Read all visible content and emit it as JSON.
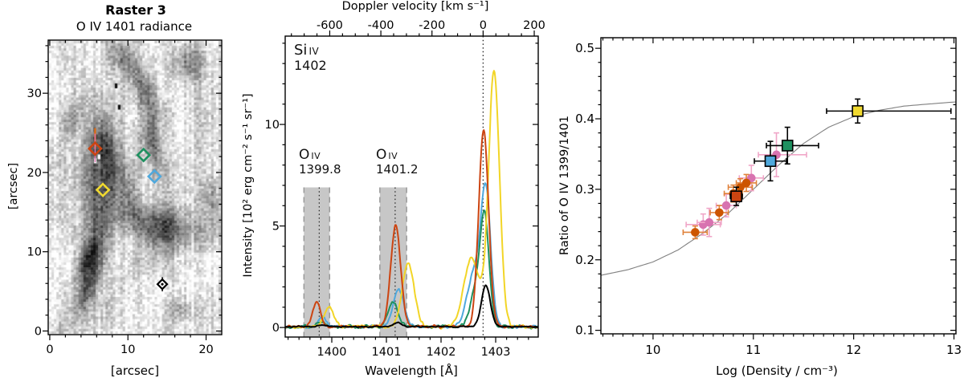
{
  "chart_data": [
    {
      "id": "raster-map",
      "type": "heatmap",
      "title": "Raster 3",
      "subtitle": "O IV 1401 radiance",
      "xlabel": "[arcsec]",
      "ylabel": "[arcsec]",
      "xlim": [
        -0.2,
        22.0
      ],
      "ylim": [
        -0.46,
        36.7
      ],
      "xticks": [
        0,
        10,
        20
      ],
      "yticks": [
        0,
        10,
        20,
        30
      ],
      "minor_tick_step": 2,
      "colormap": "inverted-grayscale",
      "markers": [
        {
          "label": "region-red",
          "shape": "diamond",
          "color": "#cc4411",
          "x": 5.8,
          "y": 23.0,
          "extra_lines": [
            {
              "color": "#e06a10",
              "y0": 23.0,
              "y1": 25.6,
              "width": 2.2
            },
            {
              "color": "#e070b0",
              "y0": 21.3,
              "y1": 24.9,
              "width": 1.3
            }
          ]
        },
        {
          "label": "region-green",
          "shape": "diamond",
          "color": "#1e9160",
          "x": 12.0,
          "y": 22.2
        },
        {
          "label": "region-blue",
          "shape": "diamond",
          "color": "#4fa8dc",
          "x": 13.4,
          "y": 19.5
        },
        {
          "label": "region-yellow",
          "shape": "diamond",
          "color": "#f0d930",
          "x": 6.8,
          "y": 17.8
        },
        {
          "label": "region-black",
          "shape": "diamond",
          "color": "#000000",
          "x": 14.4,
          "y": 5.9,
          "yerr": 0.9
        }
      ],
      "dark_features": [
        [
          5.2,
          6.5,
          0.9,
          3.2,
          -20,
          0.62
        ],
        [
          5.8,
          14,
          1.1,
          4,
          -8,
          0.34
        ],
        [
          7.3,
          22,
          1.2,
          4.5,
          8,
          0.6
        ],
        [
          4.6,
          20,
          1.4,
          3.5,
          0,
          0.34
        ],
        [
          14.5,
          13,
          3.2,
          1.8,
          -12,
          0.58
        ],
        [
          11.5,
          31.5,
          1.0,
          3.5,
          25,
          0.42
        ],
        [
          13.3,
          23.5,
          0.8,
          3.0,
          10,
          0.4
        ],
        [
          9.0,
          34.5,
          1.2,
          1.5,
          0,
          0.3
        ],
        [
          18.0,
          34.0,
          1.5,
          1.5,
          0,
          0.34
        ],
        [
          21.0,
          16.0,
          1.0,
          2.5,
          0,
          0.3
        ],
        [
          16.5,
          2.5,
          1.5,
          1.0,
          0,
          0.26
        ],
        [
          2.5,
          26.0,
          0.8,
          2.0,
          -15,
          0.3
        ],
        [
          10.2,
          17.5,
          0.7,
          2.2,
          5,
          0.3
        ],
        [
          4.9,
          9.5,
          0.7,
          2.4,
          -25,
          0.45
        ]
      ]
    },
    {
      "id": "spectra",
      "type": "line",
      "top_xlabel": "Doppler velocity [km s⁻¹]",
      "top_xticks": [
        -600,
        -400,
        -200,
        0,
        200
      ],
      "xlabel": "Wavelength [Å]",
      "ylabel": "Intensity [10² erg cm⁻² s⁻¹ sr⁻¹]",
      "xlim": [
        1399.147,
        1403.779
      ],
      "ylim": [
        -0.47,
        14.35
      ],
      "xticks": [
        1400,
        1401,
        1402,
        1403
      ],
      "yticks": [
        0,
        5,
        10
      ],
      "rest_wavelength_si_iv": 1402.77,
      "shaded_bands": [
        {
          "x0": 1399.49,
          "x1": 1399.96,
          "center_dotted": 1399.77,
          "top": 6.9
        },
        {
          "x0": 1400.88,
          "x1": 1401.37,
          "center_dotted": 1401.16,
          "top": 6.9
        }
      ],
      "annotations": [
        {
          "element": "Si",
          "ion": "IV",
          "number": "1402"
        },
        {
          "element": "O",
          "ion": "IV",
          "number": "1399.8"
        },
        {
          "element": "O",
          "ion": "IV",
          "number": "1401.2"
        }
      ],
      "series": [
        {
          "name": "blue",
          "color": "#4fa8dc",
          "noise": 0.12,
          "gaussians": [
            [
              1399.83,
              0.5,
              0.07
            ],
            [
              1401.22,
              1.8,
              0.1
            ],
            [
              1402.6,
              2.6,
              0.12
            ],
            [
              1402.82,
              6.6,
              0.09
            ]
          ]
        },
        {
          "name": "green",
          "color": "#1e9160",
          "noise": 0.12,
          "gaussians": [
            [
              1399.8,
              0.32,
              0.07
            ],
            [
              1401.12,
              1.2,
              0.09
            ],
            [
              1402.64,
              1.8,
              0.1
            ],
            [
              1402.8,
              5.2,
              0.08
            ]
          ]
        },
        {
          "name": "yellow",
          "color": "#f2d527",
          "noise": 0.14,
          "gaussians": [
            [
              1399.95,
              1.0,
              0.09
            ],
            [
              1401.4,
              3.1,
              0.11
            ],
            [
              1402.56,
              3.4,
              0.14
            ],
            [
              1402.97,
              12.6,
              0.1
            ]
          ]
        },
        {
          "name": "red",
          "color": "#cc4411",
          "noise": 0.11,
          "gaussians": [
            [
              1399.72,
              1.2,
              0.07
            ],
            [
              1401.17,
              5.0,
              0.09
            ],
            [
              1402.78,
              9.7,
              0.09
            ]
          ]
        },
        {
          "name": "black",
          "color": "#000000",
          "noise": 0.045,
          "gaussians": [
            [
              1399.8,
              0.07,
              0.07
            ],
            [
              1401.2,
              0.2,
              0.08
            ],
            [
              1402.82,
              2.05,
              0.08
            ]
          ]
        }
      ]
    },
    {
      "id": "density-ratio",
      "type": "scatter",
      "xlabel": "Log (Density / cm⁻³)",
      "ylabel": "Ratio of O IV 1399/1401",
      "xlim": [
        9.48,
        13.02
      ],
      "ylim": [
        0.095,
        0.515
      ],
      "xticks": [
        10,
        11,
        12,
        13
      ],
      "yticks": [
        0.1,
        0.2,
        0.3,
        0.4,
        0.5
      ],
      "x_minor_step": 0.1,
      "y_minor_step": 0.02,
      "theory_curve": {
        "x": [
          9.48,
          9.75,
          10.0,
          10.25,
          10.5,
          10.75,
          11.0,
          11.25,
          11.5,
          11.75,
          12.0,
          12.25,
          12.5,
          12.75,
          13.02
        ],
        "y": [
          0.178,
          0.186,
          0.197,
          0.214,
          0.238,
          0.266,
          0.3,
          0.334,
          0.365,
          0.388,
          0.403,
          0.412,
          0.418,
          0.421,
          0.424
        ]
      },
      "points": [
        {
          "marker": "circle",
          "color": "#d873b0",
          "ecolor": "#f0a6c8",
          "x": 10.5,
          "y": 0.25,
          "xerr": [
            0.17,
            0.17
          ],
          "yerr": [
            0.015,
            0.015
          ]
        },
        {
          "marker": "circle",
          "color": "#d873b0",
          "ecolor": "#f0a6c8",
          "x": 10.56,
          "y": 0.253,
          "xerr": [
            0.12,
            0.12
          ],
          "yerr": [
            0.02,
            0.02
          ]
        },
        {
          "marker": "circle",
          "color": "#d873b0",
          "ecolor": "#f0a6c8",
          "x": 10.73,
          "y": 0.277,
          "xerr": [
            0.1,
            0.1
          ],
          "yerr": [
            0.016,
            0.016
          ]
        },
        {
          "marker": "circle",
          "color": "#d873b0",
          "ecolor": "#f0a6c8",
          "x": 10.98,
          "y": 0.316,
          "xerr": [
            0.12,
            0.12
          ],
          "yerr": [
            0.018,
            0.018
          ]
        },
        {
          "marker": "circle",
          "color": "#d873b0",
          "ecolor": "#f0a6c8",
          "x": 11.23,
          "y": 0.349,
          "xerr": [
            0.18,
            0.3
          ],
          "yerr": [
            0.031,
            0.031
          ]
        },
        {
          "marker": "circle",
          "color": "#cc5500",
          "ecolor": "#e0813a",
          "x": 10.42,
          "y": 0.239,
          "xerr": [
            0.12,
            0.12
          ],
          "yerr": [
            0.009,
            0.009
          ]
        },
        {
          "marker": "circle",
          "color": "#cc5500",
          "ecolor": "#e0813a",
          "x": 10.66,
          "y": 0.267,
          "xerr": [
            0.09,
            0.09
          ],
          "yerr": [
            0.01,
            0.01
          ]
        },
        {
          "marker": "circle",
          "color": "#cc5500",
          "ecolor": "#e0813a",
          "x": 10.8,
          "y": 0.294,
          "xerr": [
            0.09,
            0.09
          ],
          "yerr": [
            0.012,
            0.012
          ]
        },
        {
          "marker": "circle",
          "color": "#cc5500",
          "ecolor": "#e0813a",
          "x": 10.87,
          "y": 0.303,
          "xerr": [
            0.12,
            0.12
          ],
          "yerr": [
            0.012,
            0.012
          ]
        },
        {
          "marker": "circle",
          "color": "#cc5500",
          "ecolor": "#e0813a",
          "x": 10.93,
          "y": 0.309,
          "xerr": [
            0.1,
            0.1
          ],
          "yerr": [
            0.012,
            0.012
          ]
        },
        {
          "marker": "square",
          "color": "#cc4411",
          "ecolor": "#000000",
          "x": 10.83,
          "y": 0.29,
          "xerr": [
            0.06,
            0.06
          ],
          "yerr": [
            0.013,
            0.013
          ]
        },
        {
          "marker": "square",
          "color": "#4fa8dc",
          "ecolor": "#000000",
          "x": 11.17,
          "y": 0.34,
          "xerr": [
            0.16,
            0.16
          ],
          "yerr": [
            0.028,
            0.028
          ]
        },
        {
          "marker": "square",
          "color": "#1e9160",
          "ecolor": "#000000",
          "x": 11.34,
          "y": 0.362,
          "xerr": [
            0.21,
            0.31
          ],
          "yerr": [
            0.026,
            0.026
          ]
        },
        {
          "marker": "square",
          "color": "#f0d930",
          "ecolor": "#000000",
          "x": 12.04,
          "y": 0.411,
          "xerr": [
            0.31,
            0.93
          ],
          "yerr": [
            0.017,
            0.017
          ]
        }
      ]
    }
  ]
}
